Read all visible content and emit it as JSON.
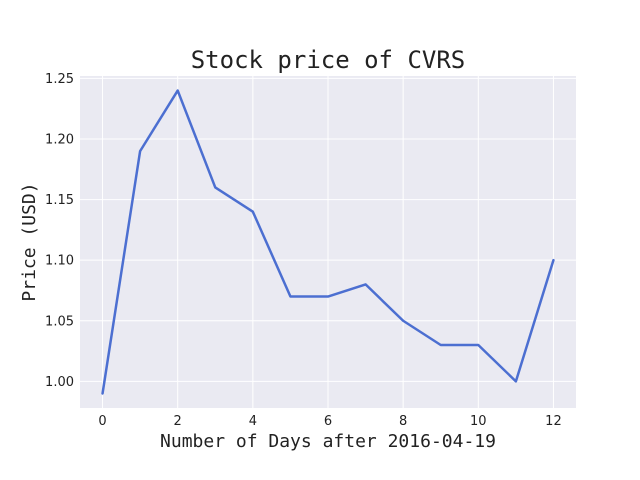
{
  "chart_data": {
    "type": "line",
    "title": "Stock price of CVRS",
    "xlabel": "Number of Days after 2016-04-19",
    "ylabel": "Price (USD)",
    "x": [
      0,
      1,
      2,
      3,
      4,
      5,
      6,
      7,
      8,
      9,
      10,
      11,
      12
    ],
    "series": [
      {
        "values": [
          0.99,
          1.19,
          1.24,
          1.16,
          1.14,
          1.07,
          1.07,
          1.08,
          1.05,
          1.03,
          1.03,
          1.0,
          1.1
        ],
        "color": "#4c6fd1"
      }
    ],
    "xlim": [
      -0.6,
      12.6
    ],
    "ylim": [
      0.978,
      1.252
    ],
    "xticks": [
      "0",
      "2",
      "4",
      "6",
      "8",
      "10",
      "12"
    ],
    "yticks": [
      "1.00",
      "1.05",
      "1.10",
      "1.15",
      "1.20",
      "1.25"
    ],
    "grid": true,
    "legend": "none",
    "background_color": "#eaeaf2"
  }
}
